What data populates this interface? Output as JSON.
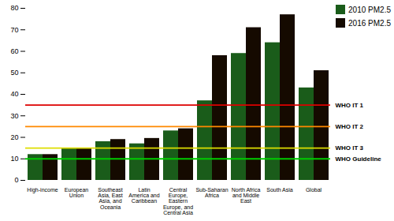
{
  "chart_data": {
    "type": "bar",
    "categories": [
      "High-income",
      "European\nUnion",
      "Southeast\nAsia, East\nAsia, and\nOceania",
      "Latin\nAmerica and\nCaribbean",
      "Central\nEurope,\nEastern\nEurope, and\nCentral Asia",
      "Sub-Saharan\nAfrica",
      "North Africa\nand Middle\nEast",
      "South Asia",
      "Global"
    ],
    "series": [
      {
        "name": "2010 PM2.5",
        "color": "#1a5c1a",
        "values": [
          12,
          15,
          18,
          17,
          23,
          37,
          59,
          64,
          43
        ]
      },
      {
        "name": "2016 PM2.5",
        "color": "#150a00",
        "values": [
          12,
          15,
          19,
          19.5,
          24,
          58,
          71,
          77,
          51
        ]
      }
    ],
    "hlines": [
      {
        "value": 35,
        "label": "WHO IT 1",
        "color": "#dd0000"
      },
      {
        "value": 25,
        "label": "WHO IT 2",
        "color": "#ff8800"
      },
      {
        "value": 15,
        "label": "WHO IT 3",
        "color": "#dddd00"
      },
      {
        "value": 10,
        "label": "WHO Guideline",
        "color": "#00cc00"
      }
    ],
    "ylim": [
      0,
      80
    ],
    "yticks": [
      0,
      10,
      20,
      30,
      40,
      50,
      60,
      70,
      80
    ],
    "legend": "upper right"
  }
}
